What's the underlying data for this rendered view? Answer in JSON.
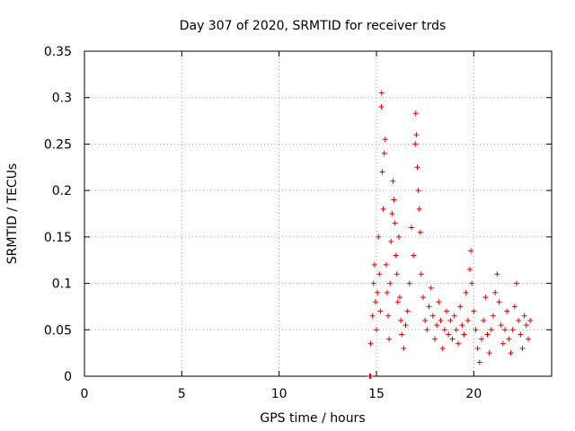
{
  "chart_data": {
    "type": "scatter",
    "title": "Day 307 of 2020, SRMTID for receiver trds",
    "xlabel": "GPS time / hours",
    "ylabel": "SRMTID / TECUs",
    "xlim": [
      0,
      24
    ],
    "ylim": [
      0,
      0.35
    ],
    "x_ticks": [
      "0",
      "5",
      "10",
      "15",
      "20"
    ],
    "x_tick_values": [
      0,
      5,
      10,
      15,
      20
    ],
    "y_ticks": [
      "0",
      "0.05",
      "0.1",
      "0.15",
      "0.2",
      "0.25",
      "0.3",
      "0.35"
    ],
    "y_tick_values": [
      0,
      0.05,
      0.1,
      0.15,
      0.2,
      0.25,
      0.3,
      0.35
    ],
    "grid": true,
    "marker": "plus",
    "series_color": "#e00000",
    "series": [
      {
        "values": [
          [
            14.65,
            0.0
          ],
          [
            14.7,
            0.0
          ],
          [
            14.7,
            0.035
          ],
          [
            14.8,
            0.065
          ],
          [
            14.85,
            0.1
          ],
          [
            14.9,
            0.12
          ],
          [
            14.95,
            0.08
          ],
          [
            15.0,
            0.05
          ],
          [
            15.05,
            0.09
          ],
          [
            15.1,
            0.15
          ],
          [
            15.15,
            0.11
          ],
          [
            15.2,
            0.07
          ],
          [
            15.25,
            0.29
          ],
          [
            15.27,
            0.305
          ],
          [
            15.3,
            0.22
          ],
          [
            15.35,
            0.18
          ],
          [
            15.4,
            0.24
          ],
          [
            15.45,
            0.255
          ],
          [
            15.5,
            0.12
          ],
          [
            15.55,
            0.09
          ],
          [
            15.6,
            0.065
          ],
          [
            15.65,
            0.04
          ],
          [
            15.7,
            0.1
          ],
          [
            15.75,
            0.145
          ],
          [
            15.8,
            0.175
          ],
          [
            15.85,
            0.21
          ],
          [
            15.9,
            0.19
          ],
          [
            15.95,
            0.165
          ],
          [
            16.0,
            0.13
          ],
          [
            16.05,
            0.11
          ],
          [
            16.1,
            0.08
          ],
          [
            16.15,
            0.15
          ],
          [
            16.2,
            0.085
          ],
          [
            16.25,
            0.06
          ],
          [
            16.3,
            0.045
          ],
          [
            16.4,
            0.03
          ],
          [
            16.5,
            0.055
          ],
          [
            16.6,
            0.07
          ],
          [
            16.7,
            0.1
          ],
          [
            16.8,
            0.16
          ],
          [
            16.9,
            0.13
          ],
          [
            17.0,
            0.25
          ],
          [
            17.02,
            0.283
          ],
          [
            17.05,
            0.26
          ],
          [
            17.1,
            0.225
          ],
          [
            17.15,
            0.2
          ],
          [
            17.2,
            0.18
          ],
          [
            17.25,
            0.155
          ],
          [
            17.3,
            0.11
          ],
          [
            17.4,
            0.085
          ],
          [
            17.5,
            0.06
          ],
          [
            17.6,
            0.05
          ],
          [
            17.7,
            0.075
          ],
          [
            17.8,
            0.095
          ],
          [
            17.9,
            0.065
          ],
          [
            18.0,
            0.04
          ],
          [
            18.1,
            0.055
          ],
          [
            18.2,
            0.08
          ],
          [
            18.3,
            0.06
          ],
          [
            18.4,
            0.03
          ],
          [
            18.5,
            0.05
          ],
          [
            18.6,
            0.07
          ],
          [
            18.7,
            0.045
          ],
          [
            18.8,
            0.06
          ],
          [
            18.9,
            0.04
          ],
          [
            19.0,
            0.065
          ],
          [
            19.1,
            0.05
          ],
          [
            19.2,
            0.035
          ],
          [
            19.3,
            0.075
          ],
          [
            19.4,
            0.055
          ],
          [
            19.5,
            0.045
          ],
          [
            19.6,
            0.09
          ],
          [
            19.7,
            0.06
          ],
          [
            19.8,
            0.115
          ],
          [
            19.85,
            0.135
          ],
          [
            19.9,
            0.1
          ],
          [
            20.0,
            0.07
          ],
          [
            20.1,
            0.05
          ],
          [
            20.2,
            0.03
          ],
          [
            20.3,
            0.015
          ],
          [
            20.4,
            0.04
          ],
          [
            20.5,
            0.06
          ],
          [
            20.6,
            0.085
          ],
          [
            20.7,
            0.045
          ],
          [
            20.8,
            0.025
          ],
          [
            20.9,
            0.05
          ],
          [
            21.0,
            0.065
          ],
          [
            21.1,
            0.09
          ],
          [
            21.2,
            0.11
          ],
          [
            21.3,
            0.08
          ],
          [
            21.4,
            0.055
          ],
          [
            21.5,
            0.035
          ],
          [
            21.6,
            0.05
          ],
          [
            21.7,
            0.07
          ],
          [
            21.8,
            0.04
          ],
          [
            21.9,
            0.025
          ],
          [
            22.0,
            0.05
          ],
          [
            22.1,
            0.075
          ],
          [
            22.2,
            0.1
          ],
          [
            22.3,
            0.06
          ],
          [
            22.4,
            0.045
          ],
          [
            22.5,
            0.03
          ],
          [
            22.6,
            0.065
          ],
          [
            22.7,
            0.055
          ],
          [
            22.8,
            0.04
          ],
          [
            22.9,
            0.06
          ]
        ]
      }
    ]
  }
}
